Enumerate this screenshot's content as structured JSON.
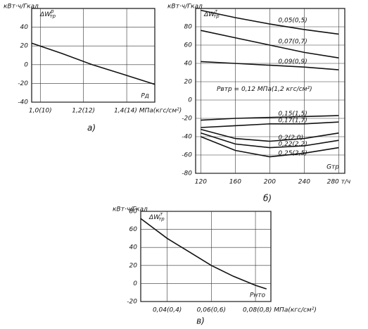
{
  "chart_data": [
    {
      "type": "line",
      "caption": "а)",
      "y_unit": "кВт·ч/Гкал",
      "series_label": "ΔW",
      "series_label_sup": "р",
      "series_label_sub": "тр",
      "xlabel": "Pд",
      "x": [
        0.96,
        1.1,
        1.24,
        1.38,
        1.53
      ],
      "values": [
        23,
        12,
        0,
        -10,
        -21
      ],
      "color": "#111111",
      "xlim": [
        0.96,
        1.53
      ],
      "ylim": [
        -40,
        60
      ],
      "xticks": [
        {
          "value": 1.0,
          "label": "1,0(10)"
        },
        {
          "value": 1.2,
          "label": "1,2(12)"
        },
        {
          "value": 1.4,
          "label": "1,4(14) МПа(кгс/см²)"
        }
      ],
      "yticks": [
        40,
        20,
        0,
        -20,
        -40
      ],
      "grid": true
    },
    {
      "type": "line",
      "caption": "б)",
      "y_unit": "кВт·ч/Гкал",
      "series_label": "ΔW",
      "series_label_sup": "т",
      "series_label_sub": "тр",
      "xlabel": "Gтр",
      "annotation": "Pвтр = 0,12 МПа(1,2 кгс/см²)",
      "x": [
        120,
        160,
        200,
        240,
        280
      ],
      "series": [
        {
          "name": "0,05(0,5)",
          "color": "#111111",
          "values": [
            98,
            90,
            83,
            77,
            72
          ]
        },
        {
          "name": "0,07(0,7)",
          "color": "#111111",
          "values": [
            76,
            68,
            60,
            52,
            46
          ]
        },
        {
          "name": "0,09(0,9)",
          "color": "#111111",
          "values": [
            42,
            40,
            38,
            36,
            33
          ]
        },
        {
          "name": "0,15(1,5)",
          "color": "#111111",
          "values": [
            -22,
            -20,
            -19,
            -18,
            -17
          ]
        },
        {
          "name": "0,17(1,7)",
          "color": "#111111",
          "values": [
            -30,
            -28,
            -26,
            -26,
            -24
          ]
        },
        {
          "name": "0,2(2,0)",
          "color": "#111111",
          "values": [
            -32,
            -42,
            -45,
            -42,
            -36
          ]
        },
        {
          "name": "0,22(2,2)",
          "color": "#111111",
          "values": [
            -36,
            -48,
            -52,
            -50,
            -44
          ]
        },
        {
          "name": "0,25(2,5)",
          "color": "#111111",
          "values": [
            -40,
            -55,
            -62,
            -58,
            -52
          ]
        }
      ],
      "xlim": [
        114,
        287
      ],
      "ylim": [
        -80,
        100
      ],
      "xticks": [
        120,
        160,
        200,
        240,
        {
          "value": 280,
          "label": "280 т/ч"
        }
      ],
      "yticks": [
        80,
        60,
        40,
        20,
        0,
        -20,
        -40,
        -60,
        -80
      ],
      "grid": true
    },
    {
      "type": "line",
      "caption": "в)",
      "y_unit": "кВт·ч/Гкал",
      "series_label": "ΔW",
      "series_label_sup": "т",
      "series_label_sub": "тр",
      "xlabel": "Pнто",
      "x": [
        0.028,
        0.04,
        0.05,
        0.06,
        0.07,
        0.08,
        0.085
      ],
      "values": [
        72,
        50,
        35,
        20,
        8,
        -2,
        -6
      ],
      "color": "#111111",
      "xlim": [
        0.028,
        0.087
      ],
      "ylim": [
        -20,
        80
      ],
      "xticks": [
        {
          "value": 0.04,
          "label": "0,04(0,4)"
        },
        {
          "value": 0.06,
          "label": "0,06(0,6)"
        },
        {
          "value": 0.08,
          "label": "0,08(0,8) МПа(кгс/см²)"
        }
      ],
      "yticks": [
        80,
        60,
        40,
        20,
        0,
        -20
      ],
      "grid": true
    }
  ]
}
